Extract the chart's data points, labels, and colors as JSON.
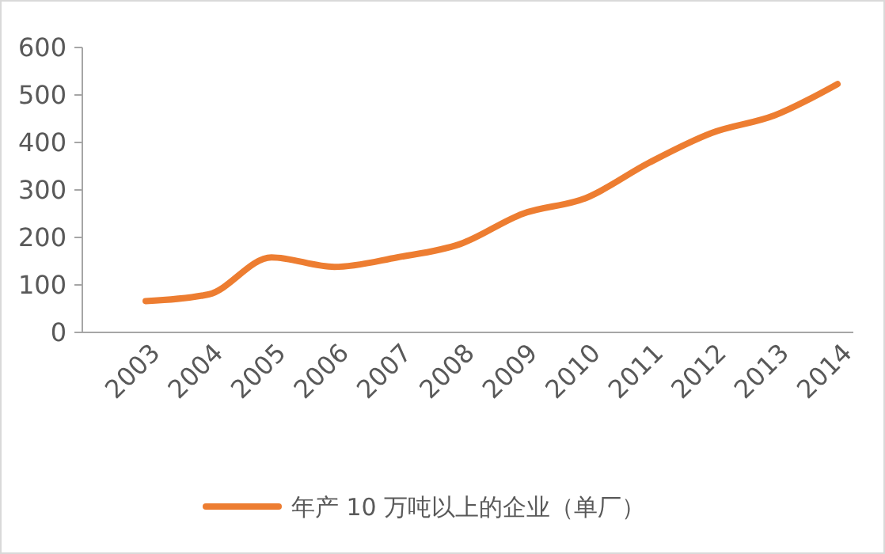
{
  "chart_data": {
    "type": "line",
    "categories": [
      "2003",
      "2004",
      "2005",
      "2006",
      "2007",
      "2008",
      "2009",
      "2010",
      "2011",
      "2012",
      "2013",
      "2014"
    ],
    "series": [
      {
        "name": "年产 10 万吨以上的企业（单厂）",
        "color": "#ed7d31",
        "values": [
          66,
          80,
          158,
          138,
          158,
          186,
          250,
          283,
          357,
          420,
          457,
          523
        ]
      }
    ],
    "ylim": [
      0,
      600
    ],
    "yticks": [
      0,
      100,
      200,
      300,
      400,
      500,
      600
    ],
    "legend": "bottom",
    "marker": "none",
    "line_style": "solid"
  }
}
